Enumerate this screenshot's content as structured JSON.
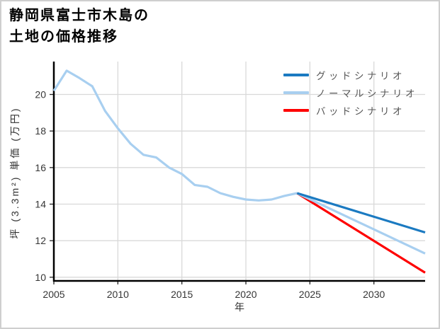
{
  "header": {
    "title_lines": [
      "静岡県富士市木島の",
      "土地の価格推移"
    ]
  },
  "colors": {
    "background": "#ffffff",
    "frame_border": "#cfcfcf",
    "grid": "#d9d9d9",
    "axis": "#000000",
    "tick_label": "#363636",
    "legend_text": "#555555"
  },
  "chart_data": {
    "type": "line",
    "title": "静岡県富士市木島の土地の価格推移",
    "xlabel": "年",
    "ylabel": "坪 (3.3m²) 単価 (万円)",
    "xlim": [
      2005,
      2034
    ],
    "ylim": [
      9.8,
      21.8
    ],
    "xticks": [
      2005,
      2010,
      2015,
      2020,
      2025,
      2030
    ],
    "yticks": [
      10,
      12,
      14,
      16,
      18,
      20
    ],
    "grid": true,
    "legend_position": "upper right",
    "history": {
      "color": "#a8cff0",
      "points": [
        [
          2005,
          20.2
        ],
        [
          2006,
          21.3
        ],
        [
          2007,
          20.9
        ],
        [
          2008,
          20.45
        ],
        [
          2009,
          19.1
        ],
        [
          2010,
          18.15
        ],
        [
          2011,
          17.3
        ],
        [
          2012,
          16.7
        ],
        [
          2013,
          16.55
        ],
        [
          2014,
          16.0
        ],
        [
          2015,
          15.65
        ],
        [
          2016,
          15.05
        ],
        [
          2017,
          14.95
        ],
        [
          2018,
          14.6
        ],
        [
          2019,
          14.4
        ],
        [
          2020,
          14.25
        ],
        [
          2021,
          14.2
        ],
        [
          2022,
          14.25
        ],
        [
          2023,
          14.45
        ],
        [
          2024,
          14.6
        ]
      ]
    },
    "series": [
      {
        "name": "グッドシナリオ",
        "color": "#1b7ac1",
        "points": [
          [
            2024,
            14.6
          ],
          [
            2034,
            12.45
          ]
        ]
      },
      {
        "name": "ノーマルシナリオ",
        "color": "#a8cff0",
        "points": [
          [
            2024,
            14.6
          ],
          [
            2034,
            11.3
          ]
        ]
      },
      {
        "name": "バッドシナリオ",
        "color": "#fe0000",
        "points": [
          [
            2024,
            14.6
          ],
          [
            2034,
            10.25
          ]
        ]
      }
    ]
  }
}
